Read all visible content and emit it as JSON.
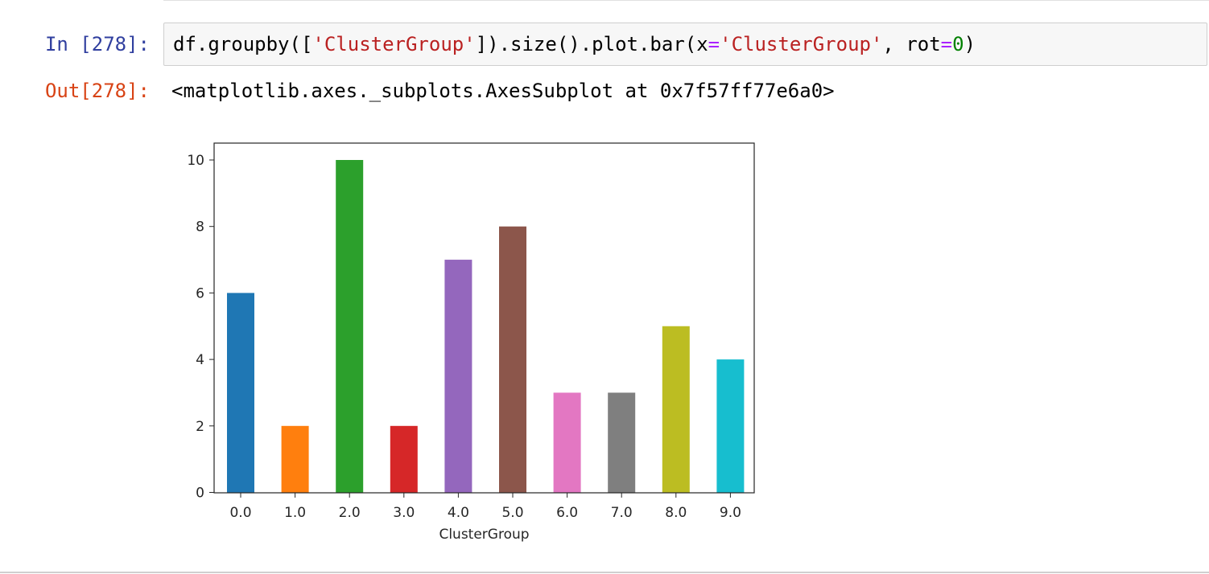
{
  "input_cell": {
    "prompt": "In [278]:",
    "code_parts": [
      {
        "text": "df.groupby([",
        "cls": ""
      },
      {
        "text": "'ClusterGroup'",
        "cls": "str"
      },
      {
        "text": "]).size().plot.bar(x",
        "cls": ""
      },
      {
        "text": "=",
        "cls": "op"
      },
      {
        "text": "'ClusterGroup'",
        "cls": "str"
      },
      {
        "text": ", rot",
        "cls": ""
      },
      {
        "text": "=",
        "cls": "op"
      },
      {
        "text": "0",
        "cls": "num"
      },
      {
        "text": ")",
        "cls": ""
      }
    ]
  },
  "output_cell": {
    "prompt": "Out[278]:",
    "text": "<matplotlib.axes._subplots.AxesSubplot at 0x7f57ff77e6a0>"
  },
  "chart_data": {
    "type": "bar",
    "categories": [
      "0.0",
      "1.0",
      "2.0",
      "3.0",
      "4.0",
      "5.0",
      "6.0",
      "7.0",
      "8.0",
      "9.0"
    ],
    "values": [
      6,
      2,
      10,
      2,
      7,
      8,
      3,
      3,
      5,
      4
    ],
    "colors": [
      "#1f77b4",
      "#ff7f0e",
      "#2ca02c",
      "#d62728",
      "#9467bd",
      "#8c564b",
      "#e377c2",
      "#7f7f7f",
      "#bcbd22",
      "#17becf"
    ],
    "xlabel": "ClusterGroup",
    "ylabel": "",
    "ylim": [
      0,
      10.5
    ],
    "yticks": [
      "0",
      "2",
      "4",
      "6",
      "8",
      "10"
    ],
    "grid": false,
    "legend": false
  }
}
